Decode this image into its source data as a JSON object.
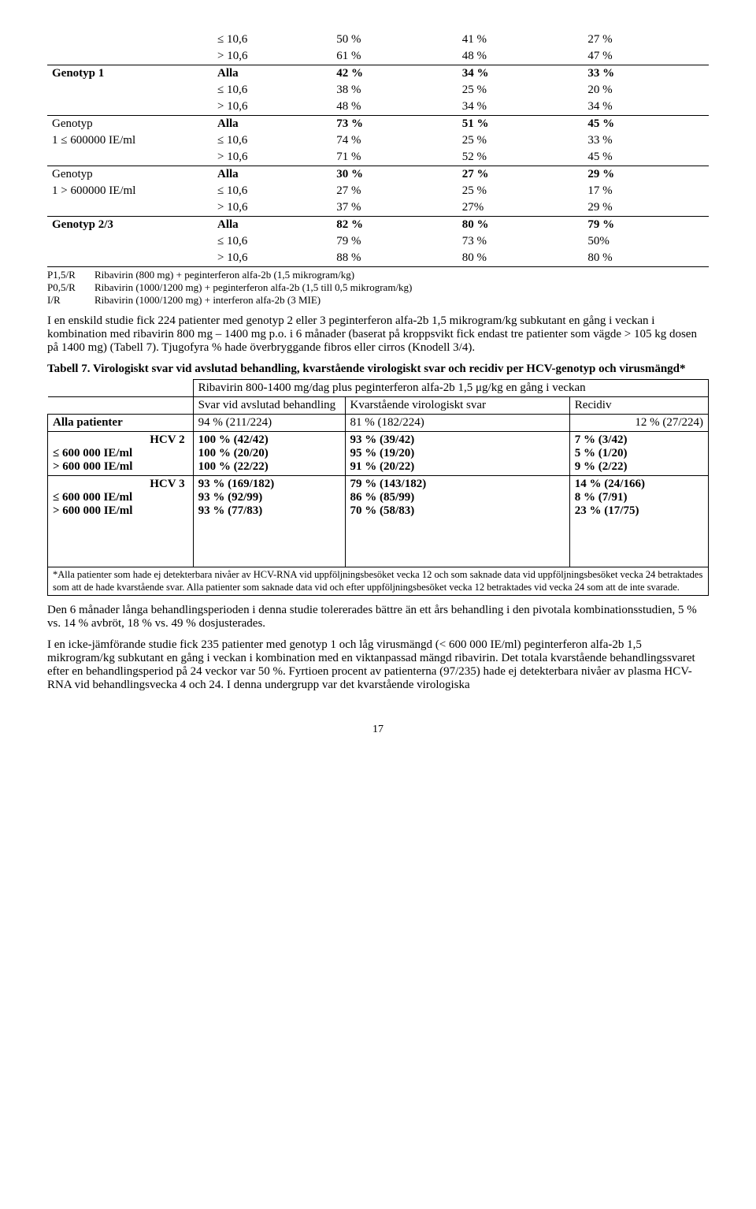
{
  "table1": {
    "rows": [
      {
        "label": "",
        "bold": false,
        "sub": [
          "≤ 10,6",
          "> 10,6"
        ],
        "c2": [
          "50 %",
          "61 %"
        ],
        "c3": [
          "41 %",
          "48 %"
        ],
        "c4": [
          "27 %",
          "47 %"
        ],
        "bb": true
      },
      {
        "label": "Genotyp 1",
        "bold": true,
        "sub": [
          "Alla",
          "≤ 10,6",
          "> 10,6"
        ],
        "c2": [
          "42 %",
          "38 %",
          "48 %"
        ],
        "c3": [
          "34 %",
          "25 %",
          "34 %"
        ],
        "c4": [
          "33 %",
          "20 %",
          "34 %"
        ],
        "bb": true
      },
      {
        "label": "Genotyp\n1 ≤ 600000 IE/ml",
        "bold": false,
        "sub": [
          "Alla",
          "≤ 10,6",
          "> 10,6"
        ],
        "c2": [
          "73 %",
          "74 %",
          "71 %"
        ],
        "c3": [
          "51 %",
          "25 %",
          "52 %"
        ],
        "c4": [
          "45 %",
          "33 %",
          "45 %"
        ],
        "bb": true
      },
      {
        "label": "Genotyp\n1 > 600000 IE/ml",
        "bold": false,
        "sub": [
          "Alla",
          "≤ 10,6",
          "> 10,6"
        ],
        "c2": [
          "30 %",
          "27 %",
          "37 %"
        ],
        "c3": [
          "27 %",
          "25 %",
          "27%"
        ],
        "c4": [
          "29 %",
          "17 %",
          "29 %"
        ],
        "bb": true
      },
      {
        "label": "Genotyp 2/3",
        "bold": true,
        "sub": [
          "Alla",
          "≤ 10,6",
          "> 10,6"
        ],
        "c2": [
          "82 %",
          "79 %",
          "88 %"
        ],
        "c3": [
          "80 %",
          "73 %",
          "80 %"
        ],
        "c4": [
          "79 %",
          "50%",
          "80 %"
        ],
        "bb": true
      }
    ],
    "footnotes": [
      {
        "k": "P1,5/R",
        "v": "Ribavirin (800 mg) + peginterferon alfa-2b (1,5 mikrogram/kg)"
      },
      {
        "k": "P0,5/R",
        "v": "Ribavirin (1000/1200 mg) + peginterferon alfa-2b (1,5 till 0,5 mikrogram/kg)"
      },
      {
        "k": "I/R",
        "v": "Ribavirin (1000/1200 mg) + interferon alfa-2b (3 MIE)"
      }
    ]
  },
  "para1": "I en enskild studie fick 224 patienter med genotyp 2 eller 3 peginterferon alfa-2b 1,5 mikrogram/kg subkutant en gång i veckan i kombination med ribavirin 800 mg – 1400 mg p.o. i 6 månader (baserat på kroppsvikt fick endast tre patienter som vägde > 105 kg dosen på 1400 mg) (Tabell 7). Tjugofyra % hade överbryggande fibros eller cirros (Knodell 3/4).",
  "t7": {
    "caption": "Tabell 7. Virologiskt svar vid avslutad behandling, kvarstående virologiskt svar och recidiv per HCV-genotyp och virusmängd*",
    "topline": "Ribavirin 800-1400 mg/dag plus peginterferon alfa-2b 1,5 μg/kg en gång i veckan",
    "head": [
      "",
      "Svar vid avslutad behandling",
      "Kvarstående virologiskt svar",
      "Recidiv"
    ],
    "r_all": {
      "label": "Alla patienter",
      "c1": "94 % (211/224)",
      "c2": "81 % (182/224)",
      "c3": "12 % (27/224)"
    },
    "r_hcv2": {
      "labels": [
        "HCV 2",
        "≤ 600 000 IE/ml",
        "> 600 000 IE/ml"
      ],
      "c1": [
        "100 % (42/42)",
        "100 % (20/20)",
        "100 % (22/22)"
      ],
      "c2": [
        "93 % (39/42)",
        "95 % (19/20)",
        "91 % (20/22)"
      ],
      "c3": [
        "7 % (3/42)",
        "5 % (1/20)",
        "9 % (2/22)"
      ]
    },
    "r_hcv3": {
      "labels": [
        "HCV 3",
        "≤ 600 000 IE/ml",
        "> 600 000 IE/ml"
      ],
      "c1": [
        "93 % (169/182)",
        "93 % (92/99)",
        "93 % (77/83)"
      ],
      "c2": [
        "79 % (143/182)",
        "86 % (85/99)",
        "70 % (58/83)"
      ],
      "c3": [
        "14 % (24/166)",
        "8 % (7/91)",
        "23 % (17/75)"
      ]
    },
    "foot": "*Alla patienter som hade ej detekterbara nivåer av HCV-RNA vid uppföljningsbesöket vecka 12 och som saknade data vid uppföljningsbesöket vecka 24 betraktades som att de hade kvarstående svar. Alla patienter som saknade data vid och efter uppföljningsbesöket vecka 12 betraktades vid vecka 24 som att de inte svarade."
  },
  "para2": "Den 6 månader långa behandlingsperioden i denna studie tolererades bättre än ett års behandling i den pivotala kombinationsstudien, 5 % vs. 14 % avbröt, 18 % vs. 49 % dosjusterades.",
  "para3": "I en icke-jämförande studie fick 235 patienter med genotyp 1 och låg virusmängd (< 600 000 IE/ml) peginterferon alfa-2b 1,5 mikrogram/kg subkutant en gång i veckan i kombination med en viktanpassad mängd ribavirin. Det totala kvarstående behandlingssvaret efter en behandlingsperiod på 24 veckor var 50 %. Fyrtioen procent av patienterna (97/235) hade ej detekterbara nivåer av plasma HCV-RNA vid behandlingsvecka 4 och 24. I denna undergrupp var det kvarstående virologiska",
  "pagenum": "17"
}
